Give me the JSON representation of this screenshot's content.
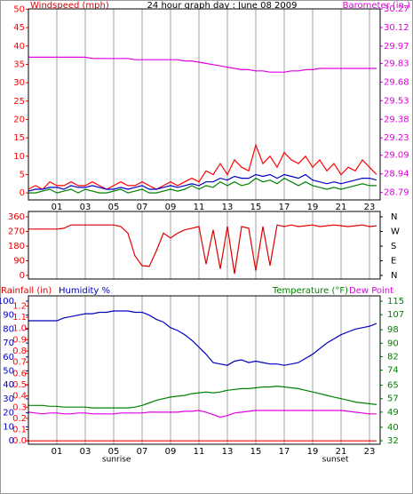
{
  "chart_data": [
    {
      "type": "line",
      "title": "24 hour graph day : June 08 2009",
      "y_label": "Windspeed (mph)",
      "y2_label": "Barometer (in.)",
      "x": [
        -1,
        -0.5,
        0,
        0.5,
        1,
        1.5,
        2,
        2.5,
        3,
        3.5,
        4,
        4.5,
        5,
        5.5,
        6,
        6.5,
        7,
        7.5,
        8,
        8.5,
        9,
        9.5,
        10,
        10.5,
        11,
        11.5,
        12,
        12.5,
        13,
        13.5,
        14,
        14.5,
        15,
        15.5,
        16,
        16.5,
        17,
        17.5,
        18,
        18.5,
        19,
        19.5,
        20,
        20.5,
        21,
        21.5,
        22,
        22.5,
        23,
        23.5
      ],
      "series": [
        {
          "color": "#ff0000",
          "values": [
            1,
            2,
            1,
            3,
            2,
            2,
            3,
            2,
            2,
            3,
            2,
            1,
            2,
            3,
            2,
            2,
            3,
            2,
            1,
            2,
            3,
            2,
            3,
            4,
            3,
            6,
            5,
            8,
            5,
            9,
            7,
            6,
            13,
            8,
            10,
            7,
            11,
            9,
            8,
            10,
            7,
            9,
            6,
            8,
            5,
            7,
            6,
            9,
            7,
            5
          ]
        },
        {
          "color": "#0000c0",
          "values": [
            0.5,
            1,
            1,
            1.5,
            1.5,
            1,
            2,
            1.5,
            1.5,
            2,
            1.5,
            1,
            1,
            1.5,
            1,
            1.5,
            2,
            1,
            1,
            1.5,
            2,
            1.5,
            2,
            2.5,
            2,
            3,
            3,
            4,
            3.5,
            4.5,
            4,
            4,
            5,
            4.5,
            5,
            4,
            5,
            4.5,
            4,
            5,
            3.5,
            3,
            2.5,
            3,
            2.5,
            3,
            3.5,
            4,
            4,
            3.5
          ]
        },
        {
          "color": "#008000",
          "values": [
            0,
            0,
            0.5,
            1,
            0,
            0.5,
            1,
            0,
            1,
            0.5,
            0,
            0,
            0.5,
            1,
            0,
            0.5,
            1,
            0,
            0,
            0.5,
            1,
            0.5,
            1,
            2,
            1,
            2,
            1.5,
            3,
            2,
            3,
            2,
            2.5,
            4,
            3,
            3.5,
            2.5,
            4,
            3,
            2,
            3,
            2,
            1.5,
            1,
            1.5,
            1,
            1.5,
            2,
            2.5,
            2,
            2
          ]
        },
        {
          "color": "#e000e0",
          "axis": "y2",
          "values": [
            29.88,
            29.88,
            29.88,
            29.88,
            29.88,
            29.88,
            29.88,
            29.88,
            29.88,
            29.87,
            29.87,
            29.87,
            29.87,
            29.87,
            29.87,
            29.86,
            29.86,
            29.86,
            29.86,
            29.86,
            29.86,
            29.86,
            29.85,
            29.85,
            29.84,
            29.83,
            29.82,
            29.81,
            29.8,
            29.79,
            29.78,
            29.78,
            29.77,
            29.77,
            29.76,
            29.76,
            29.76,
            29.77,
            29.77,
            29.78,
            29.78,
            29.79,
            29.79,
            29.79,
            29.79,
            29.79,
            29.79,
            29.79,
            29.79,
            29.79
          ]
        }
      ],
      "xlim": [
        -1,
        23.75
      ],
      "xticks": [
        {
          "value": 1,
          "label": "01"
        },
        {
          "value": 3,
          "label": "03"
        },
        {
          "value": 5,
          "label": "05"
        },
        {
          "value": 7,
          "label": "07"
        },
        {
          "value": 9,
          "label": "09"
        },
        {
          "value": 11,
          "label": "11"
        },
        {
          "value": 13,
          "label": "13"
        },
        {
          "value": 15,
          "label": "15"
        },
        {
          "value": 17,
          "label": "17"
        },
        {
          "value": 19,
          "label": "19"
        },
        {
          "value": 21,
          "label": "21"
        },
        {
          "value": 23,
          "label": "23"
        }
      ],
      "ylim": [
        -1.9,
        50.1
      ],
      "yticks": [
        0,
        5,
        10,
        15,
        20,
        25,
        30,
        35,
        40,
        45,
        50
      ],
      "y2lim": [
        28.73,
        30.27
      ],
      "y2ticks": [
        28.79,
        28.94,
        29.09,
        29.23,
        29.38,
        29.53,
        29.68,
        29.83,
        29.97,
        30.12,
        30.27
      ],
      "annotations": [
        {
          "text": "sunrise",
          "x": 5.2
        },
        {
          "text": "sunset",
          "x": 20.6
        }
      ],
      "grid": true
    },
    {
      "type": "line",
      "x": [
        -1,
        -0.5,
        0,
        0.5,
        1,
        1.5,
        2,
        2.5,
        3,
        3.5,
        4,
        4.5,
        5,
        5.5,
        6,
        6.5,
        7,
        7.5,
        8,
        8.5,
        9,
        9.5,
        10,
        10.5,
        11,
        11.5,
        12,
        12.5,
        13,
        13.5,
        14,
        14.5,
        15,
        15.5,
        16,
        16.5,
        17,
        17.5,
        18,
        18.5,
        19,
        19.5,
        20,
        20.5,
        21,
        21.5,
        22,
        22.5,
        23,
        23.5
      ],
      "series": [
        {
          "color": "#e00000",
          "values": [
            285,
            285,
            285,
            285,
            285,
            290,
            310,
            310,
            310,
            310,
            310,
            310,
            310,
            300,
            260,
            120,
            60,
            55,
            150,
            260,
            230,
            260,
            280,
            290,
            300,
            70,
            280,
            40,
            300,
            10,
            300,
            290,
            30,
            300,
            60,
            310,
            300,
            310,
            300,
            305,
            310,
            300,
            305,
            310,
            305,
            300,
            305,
            310,
            300,
            305
          ]
        }
      ],
      "xlim": [
        -1,
        23.75
      ],
      "xticks": [
        1,
        3,
        5,
        7,
        9,
        11,
        13,
        15,
        17,
        19,
        21,
        23
      ],
      "ylim": [
        -22,
        393
      ],
      "yticks": [
        0,
        90,
        180,
        270,
        360
      ],
      "y2lim": [
        -22,
        393
      ],
      "y2ticks": [
        {
          "value": 360,
          "label": "N"
        },
        {
          "value": 270,
          "label": "W"
        },
        {
          "value": 180,
          "label": "S"
        },
        {
          "value": 90,
          "label": "E"
        },
        {
          "value": 0,
          "label": "N"
        }
      ],
      "grid": true
    },
    {
      "type": "line",
      "x": [
        -1,
        -0.5,
        0,
        0.5,
        1,
        1.5,
        2,
        2.5,
        3,
        3.5,
        4,
        4.5,
        5,
        5.5,
        6,
        6.5,
        7,
        7.5,
        8,
        8.5,
        9,
        9.5,
        10,
        10.5,
        11,
        11.5,
        12,
        12.5,
        13,
        13.5,
        14,
        14.5,
        15,
        15.5,
        16,
        16.5,
        17,
        17.5,
        18,
        18.5,
        19,
        19.5,
        20,
        20.5,
        21,
        21.5,
        22,
        22.5,
        23,
        23.5
      ],
      "series": [
        {
          "name": "Rainfall (in)",
          "color": "#ff0000",
          "axis": "y3",
          "values": [
            0,
            0,
            0,
            0,
            0,
            0,
            0,
            0,
            0,
            0,
            0,
            0,
            0,
            0,
            0,
            0,
            0,
            0,
            0,
            0,
            0,
            0,
            0,
            0,
            0,
            0,
            0,
            0,
            0,
            0,
            0,
            0,
            0,
            0,
            0,
            0,
            0,
            0,
            0,
            0,
            0,
            0,
            0,
            0,
            0,
            0,
            0,
            0,
            0,
            0
          ]
        },
        {
          "name": "Humidity %",
          "color": "#0000c0",
          "values": [
            86,
            86,
            86,
            86,
            86,
            88,
            89,
            90,
            91,
            91,
            92,
            92,
            93,
            93,
            93,
            92,
            92,
            90,
            87,
            85,
            81,
            79,
            76,
            72,
            67,
            62,
            56,
            55,
            54,
            57,
            58,
            56,
            57,
            56,
            55,
            55,
            54,
            55,
            56,
            59,
            62,
            66,
            70,
            73,
            76,
            78,
            80,
            81,
            82,
            84
          ]
        },
        {
          "name": "Temperature (°F)",
          "color": "#008000",
          "axis": "y2",
          "values": [
            53,
            53,
            53,
            52.5,
            52.5,
            52,
            52,
            52,
            52,
            51.5,
            51.5,
            51.5,
            51.5,
            51.5,
            51.5,
            52,
            53,
            54.5,
            56,
            57,
            58,
            58.5,
            59,
            60,
            60.5,
            61,
            60.5,
            61,
            62,
            62.5,
            63,
            63,
            63.5,
            64,
            64,
            64.5,
            64,
            63.5,
            63,
            62,
            61,
            60,
            59,
            58,
            57,
            56,
            55,
            54.5,
            54,
            53.5
          ]
        },
        {
          "name": "Dew Point",
          "color": "#e000e0",
          "axis": "y2",
          "values": [
            49,
            48.5,
            48,
            48.5,
            48.5,
            48,
            48,
            48.5,
            48.5,
            48,
            48,
            48,
            48,
            48.5,
            48.5,
            48.5,
            48.5,
            49,
            49,
            49,
            49,
            49,
            49.5,
            49.5,
            50,
            49,
            47.5,
            46,
            47,
            48.5,
            49,
            49.5,
            50,
            50,
            50,
            50,
            50,
            50,
            50,
            50,
            50,
            50,
            50,
            50,
            50,
            49.5,
            49,
            48.5,
            48,
            48
          ]
        }
      ],
      "xlim": [
        -1,
        23.75
      ],
      "xticks": [
        {
          "value": 1,
          "label": "01"
        },
        {
          "value": 3,
          "label": "03"
        },
        {
          "value": 5,
          "label": "05"
        },
        {
          "value": 7,
          "label": "07"
        },
        {
          "value": 9,
          "label": "09"
        },
        {
          "value": 11,
          "label": "11"
        },
        {
          "value": 13,
          "label": "13"
        },
        {
          "value": 15,
          "label": "15"
        },
        {
          "value": 17,
          "label": "17"
        },
        {
          "value": 19,
          "label": "19"
        },
        {
          "value": 21,
          "label": "21"
        },
        {
          "value": 23,
          "label": "23"
        }
      ],
      "ylim": [
        -2.5,
        103.8
      ],
      "yticks": [
        0,
        10,
        20,
        30,
        40,
        50,
        60,
        70,
        80,
        90,
        100
      ],
      "y2lim": [
        29.9,
        118.2
      ],
      "y2ticks": [
        32,
        40,
        49,
        57,
        65,
        74,
        82,
        90,
        98,
        107,
        115
      ],
      "y3lim": [
        -0.03,
        1.29
      ],
      "y3ticks": [
        {
          "value": 0,
          "label": "0.0"
        },
        0.1,
        0.2,
        0.3,
        0.4,
        0.5,
        0.6,
        0.7,
        0.8,
        0.9,
        {
          "value": 1,
          "label": "1.0"
        },
        1.1,
        1.2
      ],
      "annotations": [
        {
          "text": "sunrise",
          "x": 5.2
        },
        {
          "text": "sunset",
          "x": 20.6
        }
      ],
      "grid": true
    }
  ]
}
